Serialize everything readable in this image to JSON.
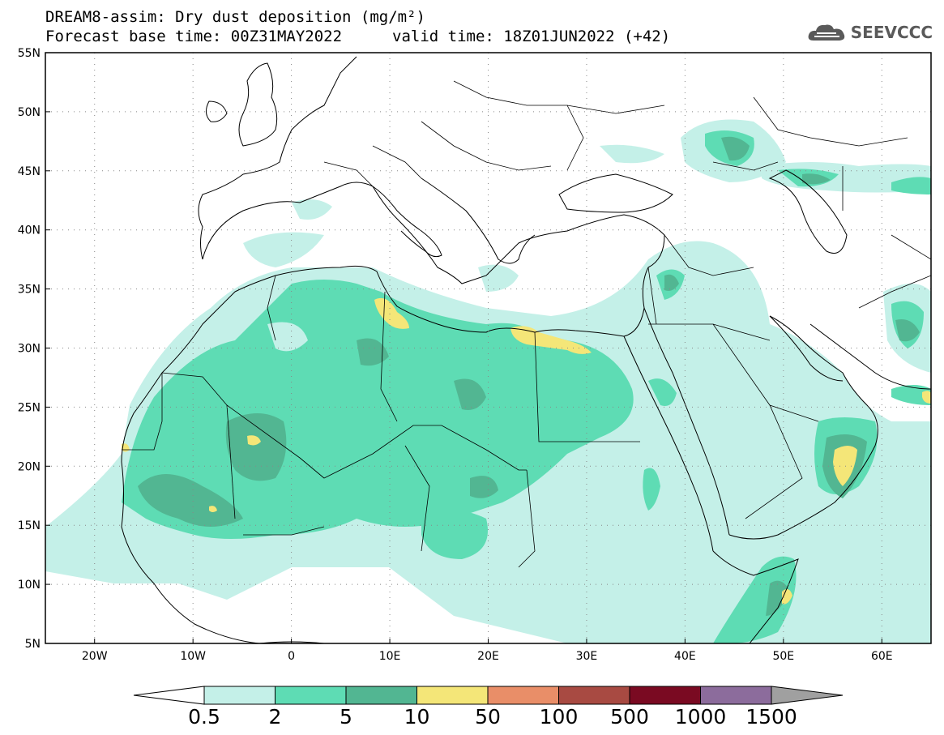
{
  "header": {
    "title_line1": "DREAM8-assim: Dry dust deposition (mg/m²)",
    "forecast_base": "Forecast base time: 00Z31MAY2022",
    "valid_time": "valid time: 18Z01JUN2022 (+42)",
    "logo_text": "SEEVCCC"
  },
  "map": {
    "lon_range": [
      -25,
      65
    ],
    "lat_range": [
      5,
      55
    ],
    "lat_ticks": [
      "55N",
      "50N",
      "45N",
      "40N",
      "35N",
      "30N",
      "25N",
      "20N",
      "15N",
      "10N",
      "5N"
    ],
    "lon_ticks": [
      "20W",
      "10W",
      "0",
      "10E",
      "20E",
      "30E",
      "40E",
      "50E",
      "60E"
    ],
    "grid": "dotted"
  },
  "legend": {
    "labels": [
      "0.5",
      "2",
      "5",
      "10",
      "50",
      "100",
      "500",
      "1000",
      "1500"
    ],
    "colors": [
      "#c4f0e8",
      "#5edcb4",
      "#52b692",
      "#f4e678",
      "#e98e68",
      "#a84a42",
      "#7a0a22",
      "#8c6c9c"
    ],
    "end_arrow_left": "#ffffff",
    "end_arrow_right": "#a0a0a0"
  }
}
